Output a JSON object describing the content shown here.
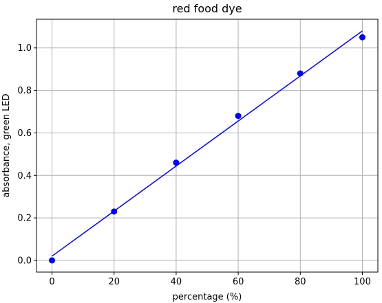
{
  "chart_data": {
    "type": "scatter",
    "title": "red food dye",
    "xlabel": "percentage (%)",
    "ylabel": "absorbance, green LED",
    "xlim": [
      -5,
      105
    ],
    "ylim": [
      -0.055,
      1.135
    ],
    "xticks": [
      0,
      20,
      40,
      60,
      80,
      100
    ],
    "yticks": [
      0.0,
      0.2,
      0.4,
      0.6,
      0.8,
      1.0
    ],
    "xtick_labels": [
      "0",
      "20",
      "40",
      "60",
      "80",
      "100"
    ],
    "ytick_labels": [
      "0.0",
      "0.2",
      "0.4",
      "0.6",
      "0.8",
      "1.0"
    ],
    "grid": true,
    "points": {
      "x": [
        0,
        20,
        40,
        60,
        80,
        100
      ],
      "y": [
        0.0,
        0.23,
        0.46,
        0.68,
        0.88,
        1.05
      ],
      "color": "#0000ff"
    },
    "fit_line": {
      "x": [
        0,
        100
      ],
      "y": [
        0.02,
        1.08
      ],
      "color": "#0000ff"
    }
  }
}
